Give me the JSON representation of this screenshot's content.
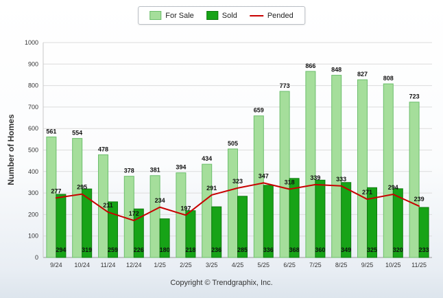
{
  "ylabel": "Number of Homes",
  "footer": "Copyright © Trendgraphix, Inc.",
  "colors": {
    "for_sale_fill": "#a5de9b",
    "for_sale_border": "#6cbe6c",
    "sold_fill": "#17a317",
    "sold_border": "#0e7a0e",
    "pended_line": "#c80000",
    "grid": "#dcdcdc",
    "axis": "#999999",
    "label_text": "#111111",
    "tick_text": "#333333"
  },
  "chart_data": {
    "type": "bar",
    "categories": [
      "9/24",
      "10/24",
      "11/24",
      "12/24",
      "1/25",
      "2/25",
      "3/25",
      "4/25",
      "5/25",
      "6/25",
      "7/25",
      "8/25",
      "9/25",
      "10/25",
      "11/25"
    ],
    "series": [
      {
        "name": "For Sale",
        "type": "bar",
        "values": [
          561,
          554,
          478,
          378,
          381,
          394,
          434,
          505,
          659,
          773,
          866,
          848,
          827,
          808,
          723
        ]
      },
      {
        "name": "Sold",
        "type": "bar",
        "values": [
          294,
          319,
          259,
          226,
          180,
          218,
          236,
          285,
          336,
          368,
          360,
          349,
          325,
          320,
          233
        ]
      },
      {
        "name": "Pended",
        "type": "line",
        "values": [
          277,
          295,
          211,
          172,
          234,
          197,
          291,
          323,
          347,
          318,
          339,
          333,
          271,
          294,
          239
        ]
      }
    ],
    "title": "",
    "xlabel": "",
    "ylabel": "Number of Homes",
    "ylim": [
      0,
      1000
    ],
    "ytick_step": 100,
    "grid": true,
    "legend_position": "top"
  }
}
